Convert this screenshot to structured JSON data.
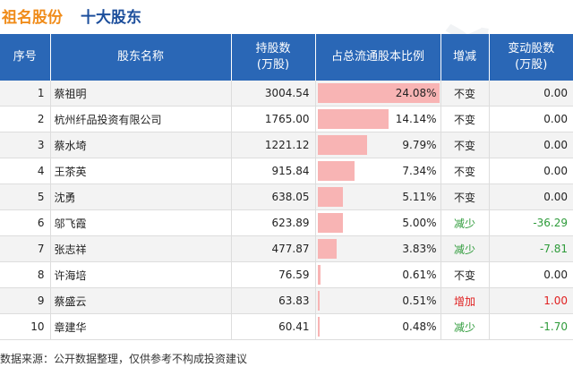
{
  "header": {
    "company": "祖名股份",
    "section": "十大股东"
  },
  "columns": {
    "rank": "序号",
    "name": "股东名称",
    "holding": [
      "持股数",
      "(万股)"
    ],
    "ratio": "占总流通股本比例",
    "change": "增减",
    "amount": [
      "变动股数",
      "(万股)"
    ]
  },
  "rows": [
    {
      "rank": "1",
      "name": "蔡祖明",
      "holding": "3004.54",
      "ratio_pct": 24.08,
      "ratio": "24.08%",
      "change": "不变",
      "change_type": "same",
      "amount": "0.00"
    },
    {
      "rank": "2",
      "name": "杭州纤品投资有限公司",
      "holding": "1765.00",
      "ratio_pct": 14.14,
      "ratio": "14.14%",
      "change": "不变",
      "change_type": "same",
      "amount": "0.00"
    },
    {
      "rank": "3",
      "name": "蔡水埼",
      "holding": "1221.12",
      "ratio_pct": 9.79,
      "ratio": "9.79%",
      "change": "不变",
      "change_type": "same",
      "amount": "0.00"
    },
    {
      "rank": "4",
      "name": "王茶英",
      "holding": "915.84",
      "ratio_pct": 7.34,
      "ratio": "7.34%",
      "change": "不变",
      "change_type": "same",
      "amount": "0.00"
    },
    {
      "rank": "5",
      "name": "沈勇",
      "holding": "638.05",
      "ratio_pct": 5.11,
      "ratio": "5.11%",
      "change": "不变",
      "change_type": "same",
      "amount": "0.00"
    },
    {
      "rank": "6",
      "name": "邬飞霞",
      "holding": "623.89",
      "ratio_pct": 5.0,
      "ratio": "5.00%",
      "change": "减少",
      "change_type": "down",
      "amount": "-36.29"
    },
    {
      "rank": "7",
      "name": "张志祥",
      "holding": "477.87",
      "ratio_pct": 3.83,
      "ratio": "3.83%",
      "change": "减少",
      "change_type": "down",
      "amount": "-7.81"
    },
    {
      "rank": "8",
      "name": "许海培",
      "holding": "76.59",
      "ratio_pct": 0.61,
      "ratio": "0.61%",
      "change": "不变",
      "change_type": "same",
      "amount": "0.00"
    },
    {
      "rank": "9",
      "name": "蔡盛云",
      "holding": "63.83",
      "ratio_pct": 0.51,
      "ratio": "0.51%",
      "change": "增加",
      "change_type": "up",
      "amount": "1.00"
    },
    {
      "rank": "10",
      "name": "章建华",
      "holding": "60.41",
      "ratio_pct": 0.48,
      "ratio": "0.48%",
      "change": "减少",
      "change_type": "down",
      "amount": "-1.70"
    }
  ],
  "colors": {
    "header_bg": "#2a67b6",
    "company": "#f08c1a",
    "section": "#1d4f9c",
    "bar": "#f8b4b4",
    "down": "#2e9b3a",
    "up": "#e02020",
    "same": "#222222"
  },
  "footer": "数据来源：公开数据整理，仅供参考不构成投资建议"
}
